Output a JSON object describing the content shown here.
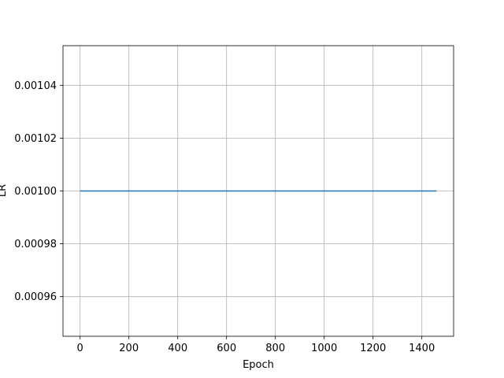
{
  "chart_data": {
    "type": "line",
    "title": "",
    "xlabel": "Epoch",
    "ylabel": "LR",
    "xlim": [
      -70,
      1530
    ],
    "ylim": [
      0.000945,
      0.001055
    ],
    "xticks": [
      0,
      200,
      400,
      600,
      800,
      1000,
      1200,
      1400
    ],
    "xtick_labels": [
      "0",
      "200",
      "400",
      "600",
      "800",
      "1000",
      "1200",
      "1400"
    ],
    "yticks": [
      0.00096,
      0.00098,
      0.001,
      0.00102,
      0.00104
    ],
    "ytick_labels": [
      "0.00096",
      "0.00098",
      "0.00100",
      "0.00102",
      "0.00104"
    ],
    "grid": true,
    "series": [
      {
        "name": "LR",
        "color": "#1f77b4",
        "x": [
          0,
          1460
        ],
        "y": [
          0.001,
          0.001
        ]
      }
    ]
  }
}
